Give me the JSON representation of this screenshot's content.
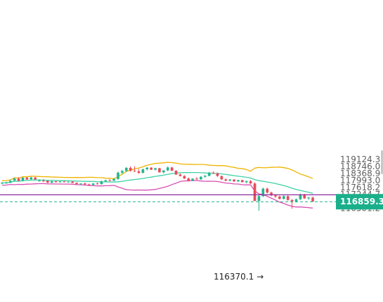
{
  "chart_data": {
    "type": "candlestick",
    "y_axis": {
      "ticks": [
        119124.3,
        118746.0,
        118368.9,
        117993.0,
        117618.2,
        117244.7,
        116501.2
      ],
      "ylim": [
        116300,
        119200
      ],
      "position": "right"
    },
    "last_price": {
      "value": 116859.3,
      "label": "116859.3",
      "color": "#1aaf8b",
      "style": "dashed"
    },
    "horizontal_level": {
      "value": 117230,
      "color": "#8a2a9e"
    },
    "low_annotation": {
      "value": 116370.1,
      "text": "116370.1",
      "arrow": "→"
    },
    "colors": {
      "up": "#26b58f",
      "down": "#e84c5a",
      "upper_band": "#f0b400",
      "middle_band": "#3dd1a6",
      "lower_band": "#d94fb4"
    },
    "candles": [
      [
        117860,
        117920,
        117800,
        117870
      ],
      [
        117870,
        117940,
        117830,
        117880
      ],
      [
        117880,
        118050,
        117860,
        117980
      ],
      [
        117990,
        118150,
        117970,
        118100
      ],
      [
        118100,
        118180,
        117960,
        117970
      ],
      [
        117990,
        118180,
        117950,
        118150
      ],
      [
        118150,
        118200,
        118040,
        118050
      ],
      [
        118060,
        118200,
        118040,
        118160
      ],
      [
        118160,
        118200,
        118030,
        118060
      ],
      [
        117980,
        118070,
        117950,
        117990
      ],
      [
        117990,
        118080,
        117920,
        117980
      ],
      [
        117980,
        118000,
        117860,
        117880
      ],
      [
        117880,
        117980,
        117860,
        117960
      ],
      [
        117960,
        117980,
        117890,
        117910
      ],
      [
        117910,
        117960,
        117880,
        117950
      ],
      [
        117950,
        117980,
        117900,
        117910
      ],
      [
        117910,
        117950,
        117880,
        117940
      ],
      [
        117940,
        117960,
        117860,
        117870
      ],
      [
        117870,
        117900,
        117780,
        117800
      ],
      [
        117800,
        117850,
        117760,
        117840
      ],
      [
        117840,
        117890,
        117770,
        117790
      ],
      [
        117790,
        117830,
        117720,
        117760
      ],
      [
        117760,
        117860,
        117740,
        117840
      ],
      [
        117840,
        117880,
        117780,
        117800
      ],
      [
        117800,
        118000,
        117780,
        117950
      ],
      [
        117950,
        118040,
        117910,
        118010
      ],
      [
        118010,
        118080,
        117960,
        117990
      ],
      [
        117990,
        118120,
        117970,
        118080
      ],
      [
        118080,
        118480,
        118040,
        118420
      ],
      [
        118420,
        118570,
        118330,
        118510
      ],
      [
        118510,
        118720,
        118460,
        118680
      ],
      [
        118680,
        118760,
        118480,
        118520
      ],
      [
        118520,
        118770,
        118460,
        118490
      ],
      [
        118490,
        118620,
        118360,
        118410
      ],
      [
        118410,
        118640,
        118380,
        118600
      ],
      [
        118600,
        118720,
        118540,
        118690
      ],
      [
        118690,
        118720,
        118560,
        118580
      ],
      [
        118580,
        118680,
        118540,
        118660
      ],
      [
        118660,
        118680,
        118420,
        118440
      ],
      [
        118440,
        118560,
        118380,
        118540
      ],
      [
        118540,
        118760,
        118500,
        118700
      ],
      [
        118700,
        118730,
        118500,
        118530
      ],
      [
        118530,
        118540,
        118300,
        118320
      ],
      [
        118320,
        118380,
        118220,
        118240
      ],
      [
        118240,
        118290,
        118080,
        118110
      ],
      [
        118110,
        118160,
        117960,
        117990
      ],
      [
        117990,
        118120,
        117960,
        118100
      ],
      [
        118100,
        118180,
        118040,
        118060
      ],
      [
        118060,
        118240,
        118040,
        118200
      ],
      [
        118200,
        118300,
        118140,
        118250
      ],
      [
        118250,
        118470,
        118220,
        118420
      ],
      [
        118420,
        118490,
        118360,
        118390
      ],
      [
        118390,
        118430,
        118200,
        118240
      ],
      [
        118240,
        118260,
        118040,
        118060
      ],
      [
        118060,
        118110,
        117960,
        117990
      ],
      [
        117990,
        118080,
        117960,
        118050
      ],
      [
        118050,
        118080,
        117930,
        117950
      ],
      [
        117950,
        118040,
        117920,
        118020
      ],
      [
        118020,
        118040,
        117900,
        117910
      ],
      [
        117910,
        117990,
        117850,
        117970
      ],
      [
        117970,
        118030,
        117820,
        117840
      ],
      [
        117840,
        117900,
        116900,
        116900
      ],
      [
        116900,
        117250,
        116370,
        117160
      ],
      [
        117160,
        117620,
        117100,
        117560
      ],
      [
        117560,
        117620,
        117300,
        117350
      ],
      [
        117350,
        117400,
        117150,
        117200
      ],
      [
        117200,
        117260,
        117060,
        117140
      ],
      [
        117140,
        117180,
        116980,
        117010
      ],
      [
        117010,
        117200,
        116980,
        117160
      ],
      [
        117160,
        117200,
        116920,
        116950
      ],
      [
        116950,
        117000,
        116480,
        116870
      ],
      [
        116870,
        117030,
        116820,
        116990
      ],
      [
        116990,
        117300,
        116960,
        117240
      ],
      [
        117240,
        117280,
        117010,
        117040
      ],
      [
        117040,
        117120,
        116960,
        117080
      ],
      [
        117080,
        117140,
        116860,
        116870
      ]
    ]
  }
}
